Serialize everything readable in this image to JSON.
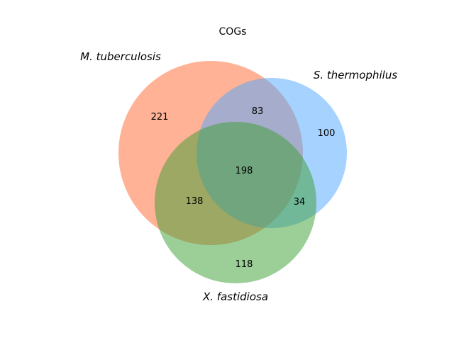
{
  "title": "COGs",
  "sets": [
    {
      "id": "A",
      "label": "M. tuberculosis",
      "color": "#ff7f50"
    },
    {
      "id": "B",
      "label": "S. thermophilus",
      "color": "#4da6ff"
    },
    {
      "id": "C",
      "label": "X. fastidiosa",
      "color": "#3a9e2f"
    }
  ],
  "regions": {
    "A_only": "221",
    "B_only": "100",
    "C_only": "118",
    "AB": "83",
    "AC": "138",
    "BC": "34",
    "ABC": "198"
  }
}
